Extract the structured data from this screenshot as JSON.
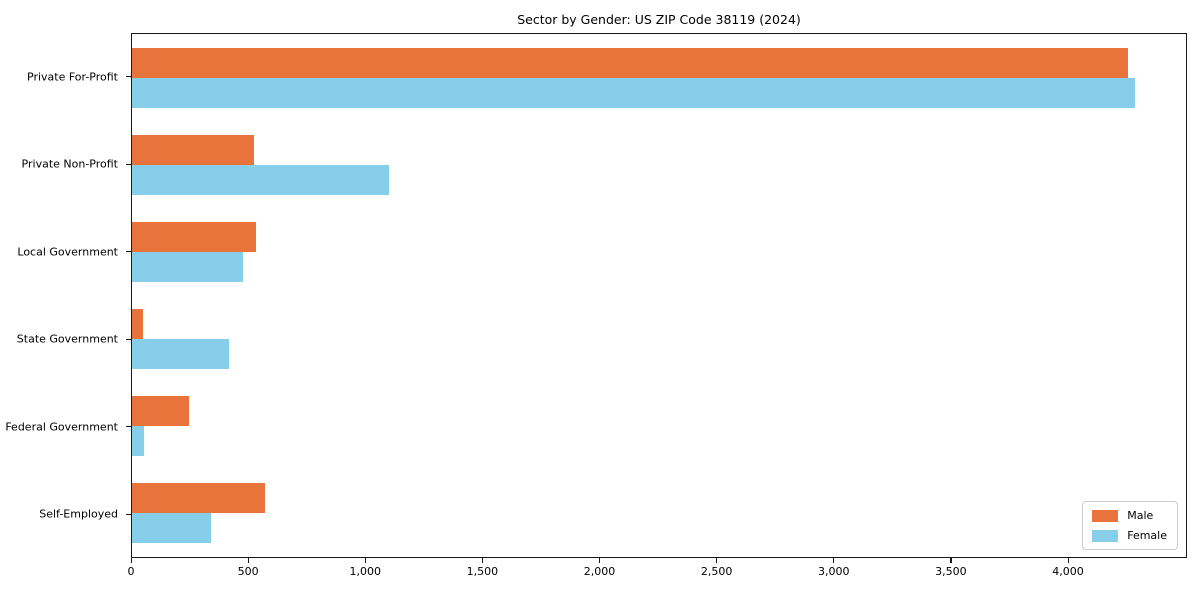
{
  "chart_data": {
    "type": "bar",
    "orientation": "horizontal",
    "title": "Sector by Gender: US ZIP Code 38119 (2024)",
    "categories": [
      "Private For-Profit",
      "Private Non-Profit",
      "Local Government",
      "State Government",
      "Federal Government",
      "Self-Employed"
    ],
    "series": [
      {
        "name": "Male",
        "color": "#E8743B",
        "values": [
          4260,
          520,
          530,
          45,
          245,
          570
        ]
      },
      {
        "name": "Female",
        "color": "#87CEEB",
        "values": [
          4290,
          1100,
          475,
          415,
          50,
          340
        ]
      }
    ],
    "xlim": [
      0,
      4508
    ],
    "xticks": {
      "values": [
        0,
        500,
        1000,
        1500,
        2000,
        2500,
        3000,
        3500,
        4000
      ],
      "labels": [
        "0",
        "500",
        "1,000",
        "1,500",
        "2,000",
        "2,500",
        "3,000",
        "3,500",
        "4,000"
      ]
    },
    "grid": false,
    "legend_position": "lower right",
    "xlabel": "",
    "ylabel": ""
  }
}
